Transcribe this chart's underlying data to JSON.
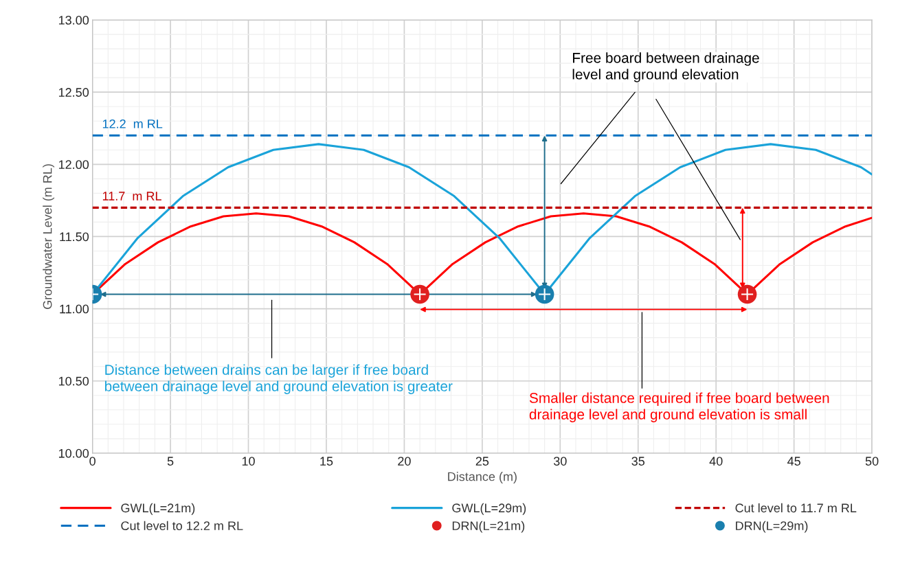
{
  "chart_data": {
    "type": "line",
    "xlabel": "Distance (m)",
    "ylabel": "Groundwater Level (m RL)",
    "xlim": [
      0,
      50
    ],
    "xticks": [
      0,
      5,
      10,
      15,
      20,
      25,
      30,
      35,
      40,
      45,
      50
    ],
    "ylim": [
      10,
      13
    ],
    "yticks": [
      {
        "value": 10,
        "label": "10.00"
      },
      {
        "value": 10.5,
        "label": "10.50"
      },
      {
        "value": 11,
        "label": "11.00"
      },
      {
        "value": 11.5,
        "label": "11.50"
      },
      {
        "value": 12,
        "label": "12.00"
      },
      {
        "value": 12.5,
        "label": "12.50"
      },
      {
        "value": 13,
        "label": "13.00"
      }
    ],
    "grid": true,
    "legend": "bottom",
    "series": [
      {
        "name": "GWL(L=21m)",
        "color": "#ff0000",
        "line_style": "solid",
        "x": [
          0,
          2.1,
          4.2,
          6.3,
          8.4,
          10.5,
          12.6,
          14.7,
          16.8,
          18.9,
          21,
          23.1,
          25.2,
          27.3,
          29.4,
          31.5,
          33.6,
          35.7,
          37.8,
          39.9,
          42,
          44.1,
          46.2,
          48.3,
          50
        ],
        "values": [
          11.1,
          11.31,
          11.46,
          11.57,
          11.64,
          11.66,
          11.64,
          11.57,
          11.46,
          11.31,
          11.1,
          11.31,
          11.46,
          11.57,
          11.64,
          11.66,
          11.64,
          11.57,
          11.46,
          11.31,
          11.1,
          11.31,
          11.46,
          11.57,
          11.63
        ]
      },
      {
        "name": "GWL(L=29m)",
        "color": "#1aa3d9",
        "line_style": "solid",
        "x": [
          0,
          2.9,
          5.8,
          8.7,
          11.6,
          14.5,
          17.4,
          20.3,
          23.2,
          26.1,
          29,
          31.9,
          34.8,
          37.7,
          40.6,
          43.5,
          46.4,
          49.3,
          50
        ],
        "values": [
          11.1,
          11.49,
          11.78,
          11.98,
          12.1,
          12.14,
          12.1,
          11.98,
          11.78,
          11.49,
          11.1,
          11.49,
          11.78,
          11.98,
          12.1,
          12.14,
          12.1,
          11.98,
          11.93
        ]
      },
      {
        "name": "Cut level to 11.7 m RL",
        "color": "#c00000",
        "line_style": "dotted",
        "x": [
          0,
          50
        ],
        "values": [
          11.7,
          11.7
        ]
      },
      {
        "name": "Cut level to 12.2 m RL",
        "color": "#0070c0",
        "line_style": "dashed",
        "x": [
          0,
          50
        ],
        "values": [
          12.2,
          12.2
        ]
      },
      {
        "name": "DRN(L=21m)",
        "type": "scatter",
        "color": "#e02020",
        "marker": "circle",
        "x": [
          21,
          42
        ],
        "values": [
          11.1,
          11.1
        ]
      },
      {
        "name": "DRN(L=29m)",
        "type": "scatter",
        "color": "#1a7fae",
        "marker": "circle",
        "x": [
          0,
          29
        ],
        "values": [
          11.1,
          11.1
        ]
      }
    ],
    "annotations": [
      {
        "text": "12.2  m RL",
        "x": 0,
        "y": 12.2
      },
      {
        "text": "11.7  m RL",
        "x": 0,
        "y": 11.7
      },
      "Free board between drainage\nlevel and ground elevation",
      "Distance between drains can be larger if free board\nbetween drainage level and ground elevation is greater",
      "Smaller distance required if free board between\ndrainage level and ground elevation is small"
    ]
  }
}
